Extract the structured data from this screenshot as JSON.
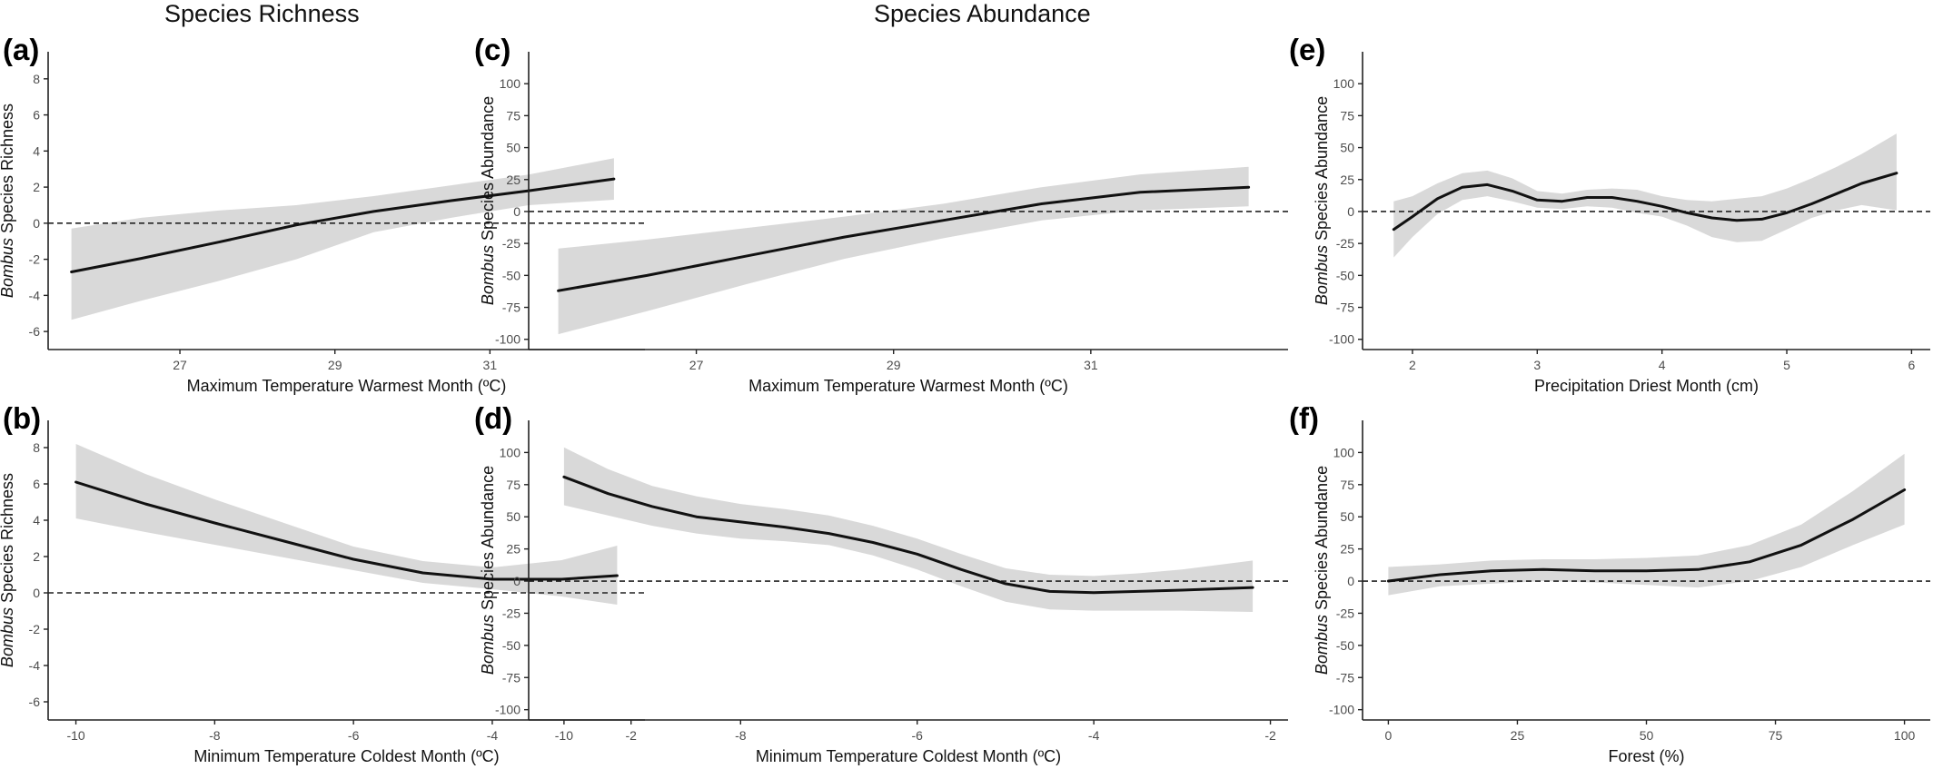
{
  "headers": {
    "richness": "Species Richness",
    "abundance": "Species Abundance"
  },
  "colors": {
    "line": "#111111",
    "band": "#d9d9d9",
    "axis": "#222222",
    "tick_label": "#4d4d4d"
  },
  "chart_data": [
    {
      "id": "a",
      "panel_label": "(a)",
      "type": "line",
      "xlabel": "Maximum Temperature Warmest Month (ºC)",
      "ylabel_italic": "Bombus",
      "ylabel_rest": " Species Richness",
      "xlim": [
        25.3,
        33.0
      ],
      "ylim": [
        -7,
        9.5
      ],
      "xticks": [
        27,
        29,
        31
      ],
      "yticks": [
        -6,
        -4,
        -2,
        0,
        2,
        4,
        6,
        8
      ],
      "reference_line_y": 0,
      "grid": false,
      "x": [
        25.6,
        26.5,
        27.5,
        28.5,
        29.5,
        30.5,
        31.5,
        32.6
      ],
      "y": [
        -2.7,
        -1.95,
        -1.05,
        -0.1,
        0.65,
        1.25,
        1.8,
        2.45
      ],
      "lower": [
        -5.35,
        -4.3,
        -3.2,
        -2.0,
        -0.5,
        0.3,
        1.0,
        1.3
      ],
      "upper": [
        -0.3,
        0.3,
        0.7,
        1.0,
        1.5,
        2.1,
        2.7,
        3.6
      ]
    },
    {
      "id": "b",
      "panel_label": "(b)",
      "type": "line",
      "xlabel": "Minimum Temperature Coldest Month (ºC)",
      "ylabel_italic": "Bombus",
      "ylabel_rest": " Species Richness",
      "xlim": [
        -10.4,
        -1.8
      ],
      "ylim": [
        -7,
        9.5
      ],
      "xticks": [
        -10,
        -8,
        -6,
        -4,
        -2
      ],
      "yticks": [
        -6,
        -4,
        -2,
        0,
        2,
        4,
        6,
        8
      ],
      "reference_line_y": 0,
      "grid": false,
      "x": [
        -10,
        -9,
        -8,
        -7,
        -6,
        -5,
        -4,
        -3,
        -2.2
      ],
      "y": [
        6.1,
        4.9,
        3.85,
        2.85,
        1.85,
        1.1,
        0.75,
        0.75,
        0.95
      ],
      "lower": [
        4.1,
        3.35,
        2.65,
        1.95,
        1.25,
        0.55,
        0.2,
        -0.2,
        -0.65
      ],
      "upper": [
        8.2,
        6.55,
        5.15,
        3.85,
        2.55,
        1.75,
        1.4,
        1.8,
        2.6
      ]
    },
    {
      "id": "c",
      "panel_label": "(c)",
      "type": "line",
      "xlabel": "Maximum Temperature Warmest Month (ºC)",
      "ylabel_italic": "Bombus",
      "ylabel_rest": " Species Abundance",
      "xlim": [
        25.3,
        33.0
      ],
      "ylim": [
        -108,
        125
      ],
      "xticks": [
        27,
        29,
        31
      ],
      "yticks": [
        -100,
        -75,
        -50,
        -25,
        0,
        25,
        50,
        75,
        100
      ],
      "reference_line_y": 0,
      "grid": false,
      "x": [
        25.6,
        26.5,
        27.5,
        28.5,
        29.5,
        30.5,
        31.5,
        32.6
      ],
      "y": [
        -62,
        -50,
        -35,
        -20,
        -7,
        6,
        15,
        19
      ],
      "lower": [
        -96,
        -78,
        -57,
        -37,
        -21,
        -7,
        1,
        4
      ],
      "upper": [
        -29,
        -22,
        -13,
        -4,
        6,
        19,
        29,
        35
      ]
    },
    {
      "id": "d",
      "panel_label": "(d)",
      "type": "line",
      "xlabel": "Minimum Temperature Coldest Month (ºC)",
      "ylabel_italic": "Bombus",
      "ylabel_rest": " Species Abundance",
      "xlim": [
        -10.4,
        -1.8
      ],
      "ylim": [
        -108,
        125
      ],
      "xticks": [
        -10,
        -8,
        -6,
        -4,
        -2
      ],
      "yticks": [
        -100,
        -75,
        -50,
        -25,
        0,
        25,
        50,
        75,
        100
      ],
      "reference_line_y": 0,
      "grid": false,
      "x": [
        -10,
        -9.5,
        -9,
        -8.5,
        -8,
        -7.5,
        -7,
        -6.5,
        -6,
        -5.5,
        -5,
        -4.5,
        -4,
        -3.5,
        -3,
        -2.2
      ],
      "y": [
        81,
        68,
        58,
        50,
        46,
        42,
        37,
        30,
        21,
        9,
        -2,
        -8,
        -9,
        -8,
        -7,
        -5
      ],
      "lower": [
        59,
        51,
        43,
        37,
        33,
        31,
        28,
        20,
        9,
        -4,
        -16,
        -22,
        -23,
        -23,
        -23,
        -24
      ],
      "upper": [
        104,
        87,
        74,
        66,
        60,
        56,
        51,
        43,
        33,
        21,
        10,
        5,
        4,
        6,
        9,
        16
      ]
    },
    {
      "id": "e",
      "panel_label": "(e)",
      "type": "line",
      "xlabel": "Precipitation Driest Month (cm)",
      "ylabel_italic": "Bombus",
      "ylabel_rest": " Species Abundance",
      "xlim": [
        1.6,
        6.15
      ],
      "ylim": [
        -108,
        125
      ],
      "xticks": [
        2,
        3,
        4,
        5,
        6
      ],
      "yticks": [
        -100,
        -75,
        -50,
        -25,
        0,
        25,
        50,
        75,
        100
      ],
      "reference_line_y": 0,
      "grid": false,
      "x": [
        1.85,
        2.0,
        2.2,
        2.4,
        2.6,
        2.8,
        3.0,
        3.2,
        3.4,
        3.6,
        3.8,
        4.0,
        4.2,
        4.4,
        4.6,
        4.8,
        5.0,
        5.2,
        5.4,
        5.6,
        5.88
      ],
      "y": [
        -14,
        -4,
        10,
        19,
        21,
        16,
        9,
        8,
        11,
        11,
        8,
        4,
        -1,
        -5,
        -7,
        -6,
        -1,
        6,
        14,
        22,
        30
      ],
      "lower": [
        -36,
        -20,
        -2,
        9,
        12,
        8,
        3,
        2,
        4,
        3,
        -1,
        -4,
        -11,
        -20,
        -24,
        -23,
        -14,
        -5,
        1,
        5,
        1
      ],
      "upper": [
        8,
        12,
        22,
        30,
        32,
        26,
        16,
        14,
        17,
        18,
        17,
        12,
        9,
        8,
        10,
        12,
        18,
        26,
        35,
        45,
        61
      ]
    },
    {
      "id": "f",
      "panel_label": "(f)",
      "type": "line",
      "xlabel": "Forest (%)",
      "ylabel_italic": "Bombus",
      "ylabel_rest": " Species Abundance",
      "xlim": [
        -5,
        105
      ],
      "ylim": [
        -108,
        125
      ],
      "xticks": [
        0,
        25,
        50,
        75,
        100
      ],
      "yticks": [
        -100,
        -75,
        -50,
        -25,
        0,
        25,
        50,
        75,
        100
      ],
      "reference_line_y": 0,
      "grid": false,
      "x": [
        0,
        10,
        20,
        30,
        40,
        50,
        60,
        70,
        80,
        90,
        100
      ],
      "y": [
        0,
        5,
        8,
        9,
        8,
        8,
        9,
        15,
        28,
        48,
        71
      ],
      "lower": [
        -11,
        -4,
        -2,
        0,
        -1,
        -3,
        -5,
        0,
        11,
        28,
        44
      ],
      "upper": [
        11,
        13,
        16,
        17,
        17,
        18,
        20,
        28,
        44,
        70,
        99
      ]
    }
  ]
}
